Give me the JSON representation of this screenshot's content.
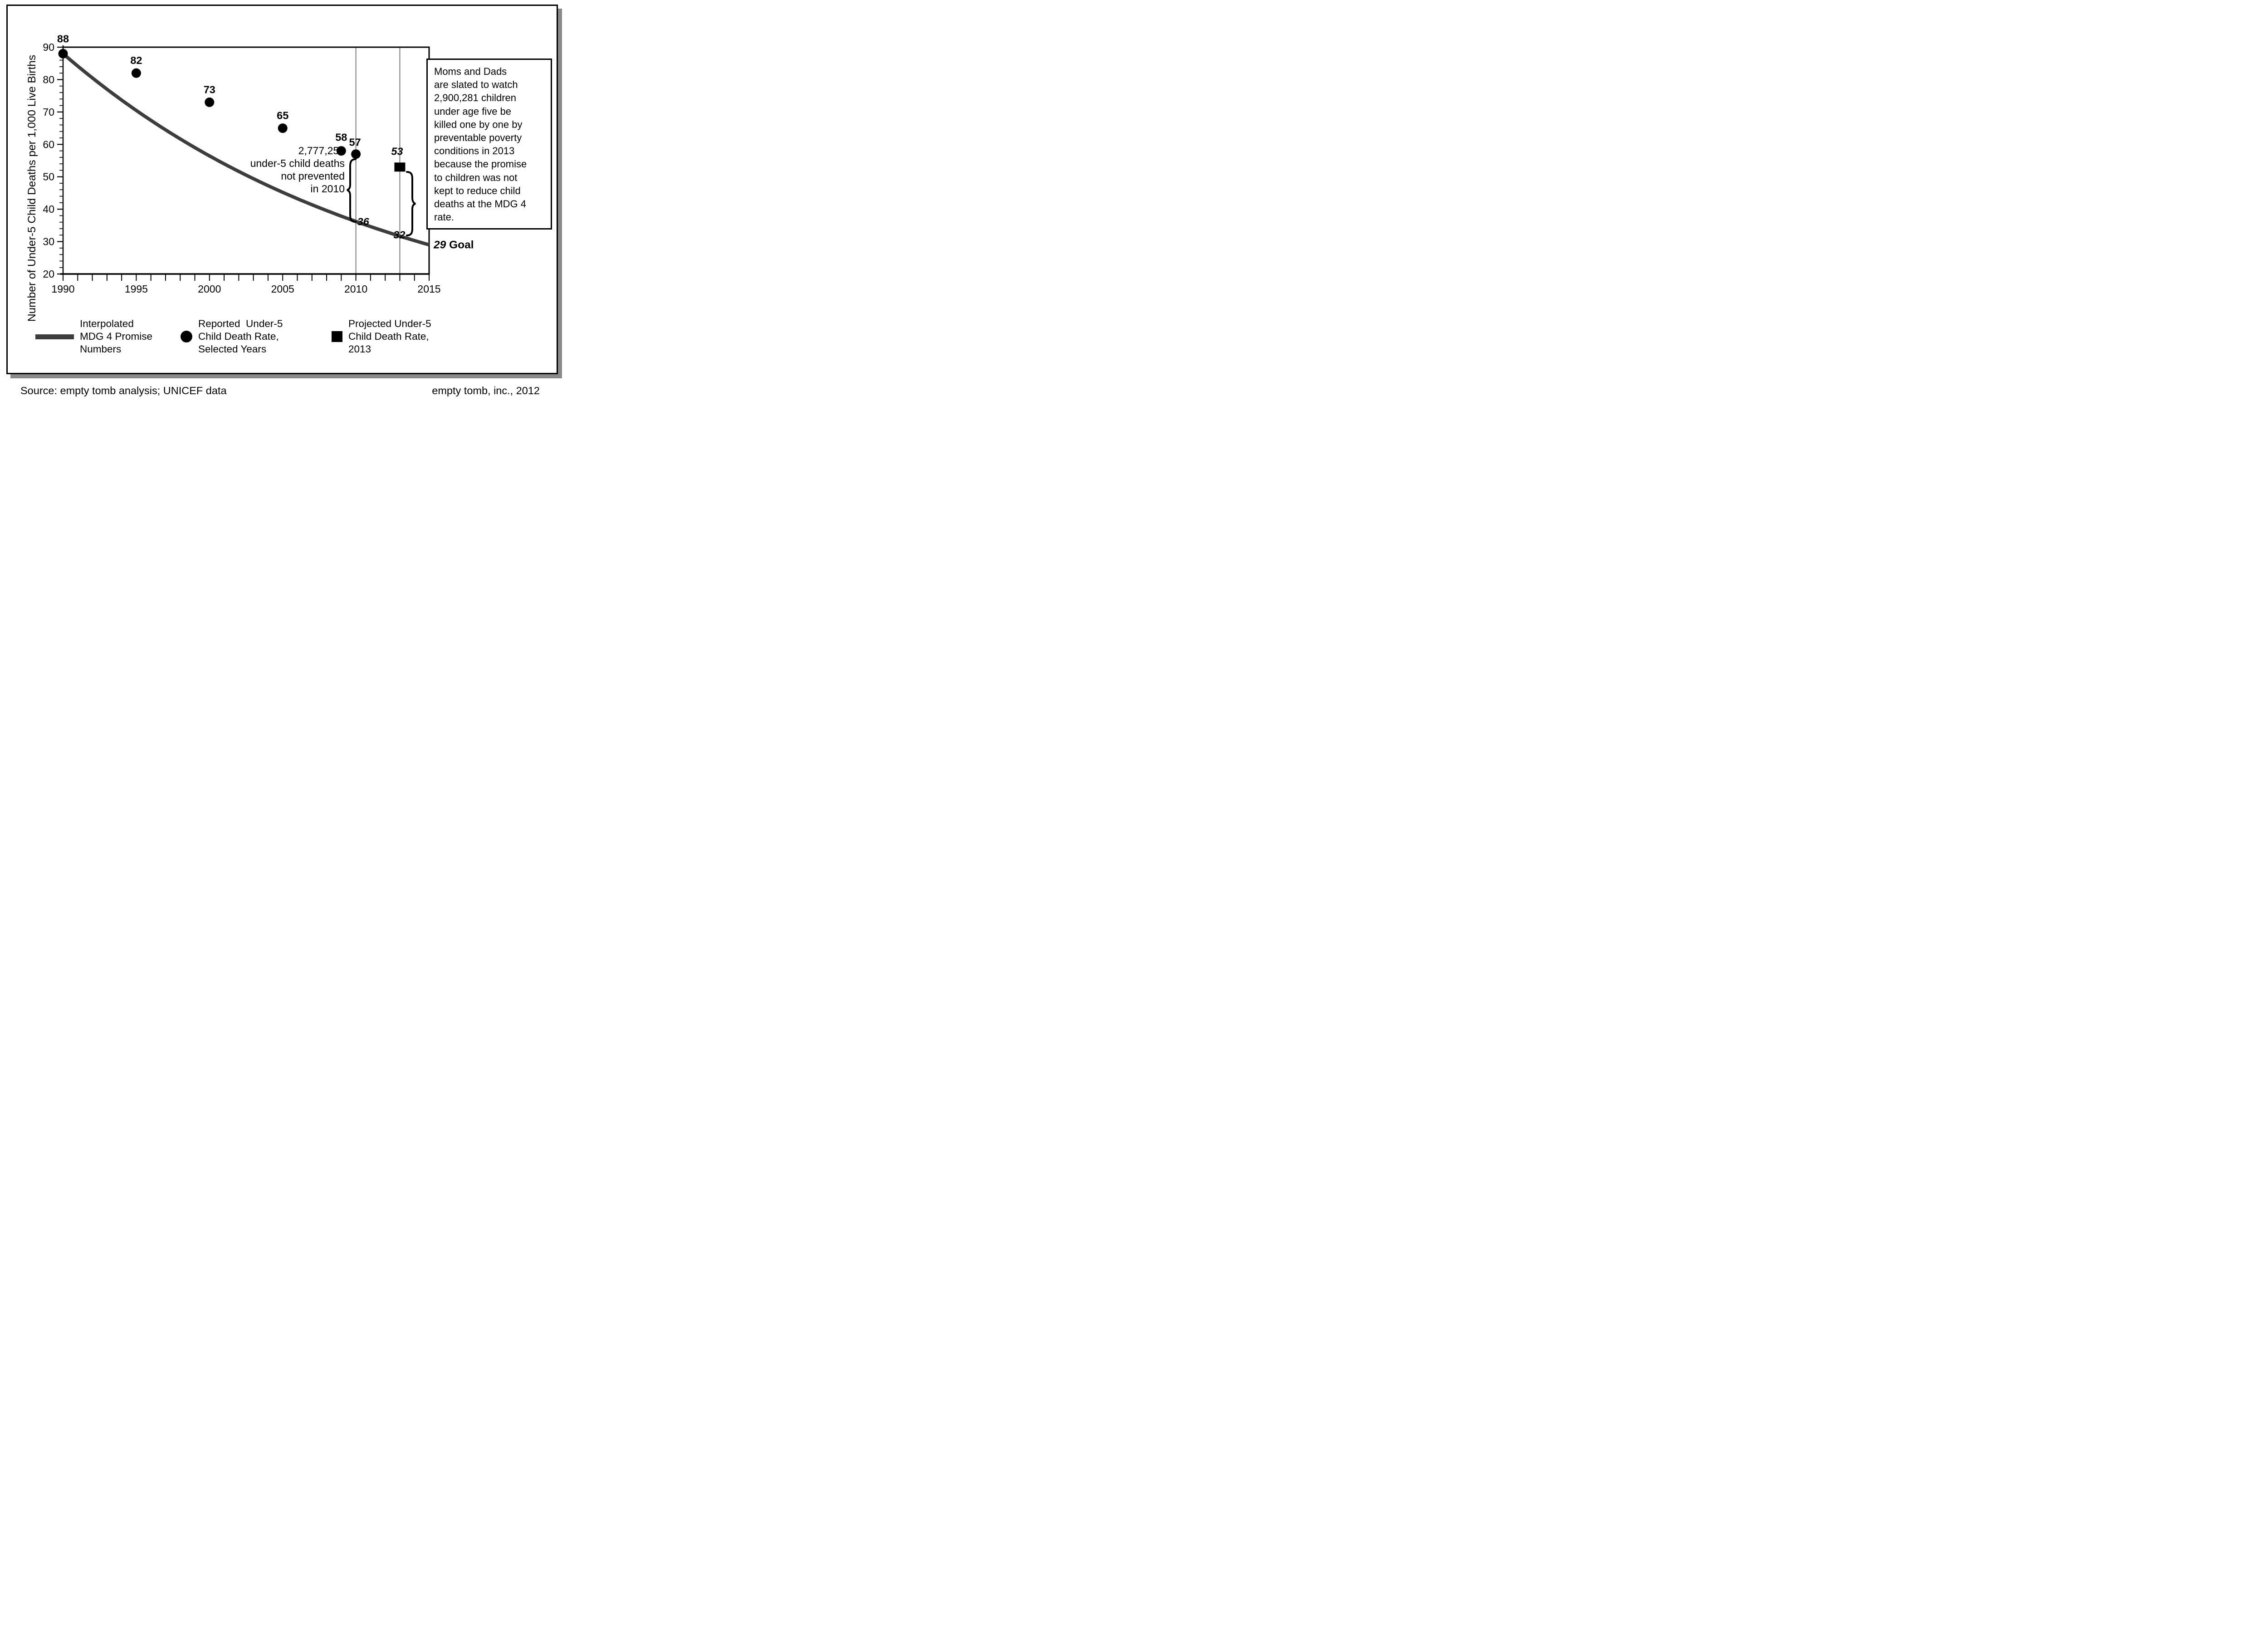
{
  "figure": {
    "y_axis_title": "Number of Under-5 Child Deaths per 1,000 Live Births",
    "source_note": "Source: empty tomb analysis; UNICEF data",
    "credit": "empty tomb, inc., 2012"
  },
  "colors": {
    "curve": "#3d3d3d",
    "marker": "#000000",
    "reference_line": "#7d7d7d",
    "frame": "#000000",
    "shadow": "#8a8a8a"
  },
  "chart_data": {
    "type": "line",
    "title": "",
    "xlabel": "",
    "ylabel": "Number of Under-5 Child Deaths per 1,000 Live Births",
    "x": {
      "min": 1990,
      "max": 2015,
      "major_ticks": [
        1990,
        1995,
        2000,
        2005,
        2010,
        2015
      ],
      "minor_step": 1
    },
    "y": {
      "min": 20,
      "max": 90,
      "major_ticks": [
        20,
        30,
        40,
        50,
        60,
        70,
        80,
        90
      ],
      "minor_step": 2
    },
    "grid": "off",
    "legend_position": "bottom",
    "series": [
      {
        "name": "Interpolated MDG 4 Promise Numbers",
        "type": "curve",
        "interpolation": "exponential",
        "color": "#3d3d3d",
        "start": {
          "x": 1990,
          "y": 88
        },
        "end": {
          "x": 2015,
          "y": 29
        },
        "key_values": [
          {
            "x": 1990,
            "y": 88
          },
          {
            "x": 2010,
            "y": 36
          },
          {
            "x": 2013,
            "y": 32
          },
          {
            "x": 2015,
            "y": 29
          }
        ]
      },
      {
        "name": "Reported Under-5 Child Death Rate, Selected Years",
        "type": "scatter",
        "marker": "circle",
        "color": "#000000",
        "points": [
          [
            1990,
            88
          ],
          [
            1995,
            82
          ],
          [
            2000,
            73
          ],
          [
            2005,
            65
          ],
          [
            2009,
            58
          ],
          [
            2010,
            57
          ]
        ],
        "point_labels": [
          "88",
          "82",
          "73",
          "65",
          "58",
          "57"
        ]
      },
      {
        "name": "Projected Under-5 Child Death Rate, 2013",
        "type": "scatter",
        "marker": "square",
        "color": "#000000",
        "points": [
          [
            2013,
            53
          ]
        ],
        "point_labels": [
          "53"
        ]
      }
    ],
    "reference_lines_x": [
      2010,
      2013
    ],
    "curve_value_labels": [
      {
        "x": 2010,
        "value": 36,
        "label": "36"
      },
      {
        "x": 2013,
        "value": 32,
        "label": "32"
      }
    ],
    "goal": {
      "x": 2015,
      "value": 29,
      "label_value": "29",
      "label_text": "Goal"
    }
  },
  "annotation_2010": {
    "lines": [
      "2,777,258",
      "under-5 child deaths",
      "not prevented",
      "in 2010"
    ]
  },
  "callout_box": {
    "lines": [
      "Moms and Dads",
      "are slated to watch",
      "2,900,281 children",
      "under age five be",
      "killed one by one by",
      "preventable poverty",
      "conditions in 2013",
      "because the promise",
      "to children was not",
      "kept to reduce child",
      "deaths at the MDG 4",
      "rate."
    ]
  },
  "legend": {
    "items": [
      {
        "swatch": "line",
        "lines": [
          "Interpolated",
          "MDG 4 Promise",
          "Numbers"
        ]
      },
      {
        "swatch": "circle",
        "lines": [
          "Reported  Under-5",
          "Child Death Rate,",
          "Selected Years"
        ]
      },
      {
        "swatch": "square",
        "lines": [
          "Projected Under-5",
          "Child Death Rate,",
          "2013"
        ]
      }
    ]
  }
}
